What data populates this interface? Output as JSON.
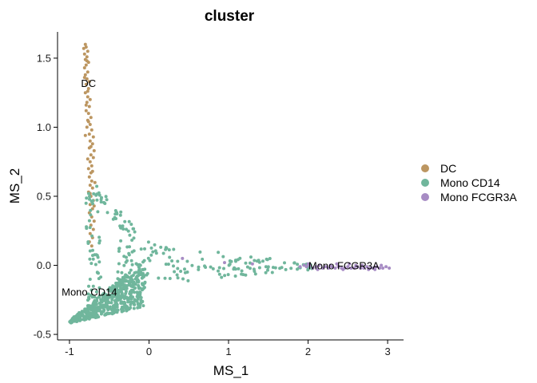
{
  "chart_data": {
    "type": "scatter",
    "title": "cluster",
    "xlabel": "MS_1",
    "ylabel": "MS_2",
    "xlim": [
      -1.15,
      3.2
    ],
    "ylim": [
      -0.54,
      1.69
    ],
    "x_ticks": [
      -1,
      0,
      1,
      2,
      3
    ],
    "x_tick_labels": [
      "-1",
      "0",
      "1",
      "2",
      "3"
    ],
    "y_ticks": [
      -0.5,
      0.0,
      0.5,
      1.0,
      1.5
    ],
    "y_tick_labels": [
      "-0.5",
      "0.0",
      "0.5",
      "1.0",
      "1.5"
    ],
    "grid": false,
    "legend_position": "right",
    "series": [
      {
        "name": "DC",
        "color": "#BC9661",
        "label_at": [
          -0.76,
          1.29
        ],
        "points": [
          [
            -0.8,
            1.6
          ],
          [
            -0.79,
            1.58
          ],
          [
            -0.82,
            1.57
          ],
          [
            -0.77,
            1.55
          ],
          [
            -0.81,
            1.53
          ],
          [
            -0.78,
            1.51
          ],
          [
            -0.8,
            1.49
          ],
          [
            -0.76,
            1.47
          ],
          [
            -0.79,
            1.45
          ],
          [
            -0.81,
            1.43
          ],
          [
            -0.77,
            1.4
          ],
          [
            -0.8,
            1.38
          ],
          [
            -0.78,
            1.35
          ],
          [
            -0.75,
            1.33
          ],
          [
            -0.79,
            1.31
          ],
          [
            -0.76,
            1.28
          ],
          [
            -0.8,
            1.25
          ],
          [
            -0.77,
            1.22
          ],
          [
            -0.74,
            1.2
          ],
          [
            -0.78,
            1.18
          ],
          [
            -0.75,
            1.15
          ],
          [
            -0.79,
            1.12
          ],
          [
            -0.76,
            1.1
          ],
          [
            -0.73,
            1.07
          ],
          [
            -0.77,
            1.05
          ],
          [
            -0.74,
            1.02
          ],
          [
            -0.78,
            1.0
          ],
          [
            -0.72,
            0.98
          ],
          [
            -0.75,
            0.95
          ],
          [
            -0.7,
            0.93
          ],
          [
            -0.74,
            0.9
          ],
          [
            -0.71,
            0.88
          ],
          [
            -0.75,
            0.85
          ],
          [
            -0.69,
            0.83
          ],
          [
            -0.73,
            0.8
          ],
          [
            -0.7,
            0.78
          ],
          [
            -0.74,
            0.75
          ],
          [
            -0.72,
            0.72
          ],
          [
            -0.76,
            0.7
          ],
          [
            -0.73,
            0.67
          ],
          [
            -0.75,
            0.64
          ],
          [
            -0.72,
            0.61
          ],
          [
            -0.74,
            0.58
          ],
          [
            -0.71,
            0.56
          ],
          [
            -0.76,
            0.53
          ],
          [
            -0.73,
            0.5
          ],
          [
            -0.7,
            0.47
          ],
          [
            -0.74,
            0.44
          ],
          [
            -0.71,
            0.41
          ],
          [
            -0.75,
            0.38
          ],
          [
            -0.72,
            0.35
          ],
          [
            -0.69,
            0.32
          ],
          [
            -0.73,
            0.29
          ],
          [
            -0.7,
            0.26
          ],
          [
            -0.74,
            0.23
          ],
          [
            -0.71,
            0.2
          ],
          [
            -0.75,
            0.17
          ],
          [
            -0.72,
            0.14
          ],
          [
            -0.78,
            1.48
          ],
          [
            -0.81,
            1.36
          ],
          [
            -0.77,
            1.26
          ],
          [
            -0.79,
            1.16
          ],
          [
            -0.76,
            1.04
          ],
          [
            -0.8,
            0.94
          ],
          [
            -0.73,
            0.86
          ],
          [
            -0.77,
            0.77
          ],
          [
            -0.71,
            0.68
          ],
          [
            -0.68,
            0.6
          ],
          [
            -0.74,
            0.52
          ],
          [
            -0.69,
            0.43
          ]
        ]
      },
      {
        "name": "Mono CD14",
        "color": "#70B69C",
        "label_at": [
          -0.75,
          -0.22
        ],
        "points": []
      },
      {
        "name": "Mono FCGR3A",
        "color": "#A78CC4",
        "label_at": [
          2.45,
          -0.03
        ],
        "points": [
          [
            1.98,
            -0.01
          ],
          [
            2.02,
            0.0
          ],
          [
            2.06,
            -0.02
          ],
          [
            2.1,
            -0.01
          ],
          [
            2.14,
            0.0
          ],
          [
            2.18,
            -0.02
          ],
          [
            2.22,
            -0.01
          ],
          [
            2.26,
            -0.02
          ],
          [
            2.3,
            -0.01
          ],
          [
            2.34,
            -0.02
          ],
          [
            2.38,
            -0.01
          ],
          [
            2.42,
            -0.02
          ],
          [
            2.46,
            -0.02
          ],
          [
            2.5,
            -0.01
          ],
          [
            2.54,
            -0.02
          ],
          [
            2.58,
            -0.02
          ],
          [
            2.62,
            -0.01
          ],
          [
            2.66,
            -0.02
          ],
          [
            2.7,
            -0.02
          ],
          [
            2.74,
            -0.01
          ],
          [
            2.78,
            -0.02
          ],
          [
            2.82,
            -0.02
          ],
          [
            2.86,
            -0.01
          ],
          [
            2.9,
            -0.02
          ],
          [
            2.94,
            -0.02
          ],
          [
            2.98,
            -0.01
          ],
          [
            3.02,
            -0.02
          ],
          [
            2.0,
            0.01
          ],
          [
            2.12,
            -0.03
          ],
          [
            2.28,
            0.0
          ],
          [
            2.44,
            -0.03
          ],
          [
            2.6,
            0.0
          ],
          [
            2.76,
            -0.03
          ],
          [
            2.92,
            0.0
          ],
          [
            1.95,
            0.0
          ],
          [
            1.9,
            -0.01
          ],
          [
            2.36,
            0.01
          ],
          [
            2.52,
            0.01
          ],
          [
            2.68,
            0.0
          ],
          [
            2.84,
            -0.03
          ],
          [
            0.42,
            0.05
          ],
          [
            0.95,
            0.02
          ],
          [
            1.3,
            0.01
          ]
        ]
      }
    ]
  }
}
